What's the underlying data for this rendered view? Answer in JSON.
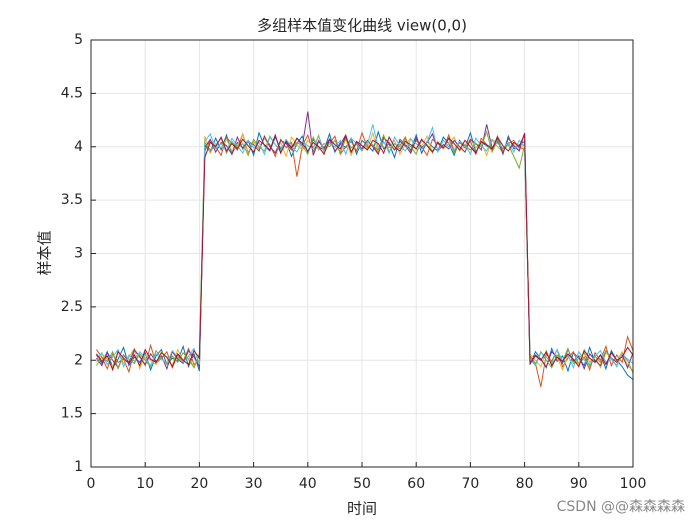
{
  "chart_data": {
    "type": "line",
    "title": "多组样本值变化曲线 view(0,0)",
    "xlabel": "时间",
    "ylabel": "样本值",
    "watermark": "CSDN @@森森森森",
    "grid": true,
    "xlim": [
      0,
      100
    ],
    "xticks": [
      0,
      10,
      20,
      30,
      40,
      50,
      60,
      70,
      80,
      90,
      100
    ],
    "ylim": [
      1,
      5
    ],
    "yticks": [
      1,
      1.5,
      2,
      2.5,
      3,
      3.5,
      4,
      4.5,
      5
    ],
    "x": [
      1,
      2,
      3,
      4,
      5,
      6,
      7,
      8,
      9,
      10,
      11,
      12,
      13,
      14,
      15,
      16,
      17,
      18,
      19,
      20,
      21,
      22,
      23,
      24,
      25,
      26,
      27,
      28,
      29,
      30,
      31,
      32,
      33,
      34,
      35,
      36,
      37,
      38,
      39,
      40,
      41,
      42,
      43,
      44,
      45,
      46,
      47,
      48,
      49,
      50,
      51,
      52,
      53,
      54,
      55,
      56,
      57,
      58,
      59,
      60,
      61,
      62,
      63,
      64,
      65,
      66,
      67,
      68,
      69,
      70,
      71,
      72,
      73,
      74,
      75,
      76,
      77,
      78,
      79,
      80,
      81,
      82,
      83,
      84,
      85,
      86,
      87,
      88,
      89,
      90,
      91,
      92,
      93,
      94,
      95,
      96,
      97,
      98,
      99,
      100
    ],
    "series": [
      {
        "color": "#0072bd",
        "values": [
          2.05,
          1.97,
          2.08,
          1.93,
          2.01,
          2.12,
          1.95,
          2.03,
          1.98,
          2.07,
          1.91,
          2.04,
          2.1,
          1.96,
          2.02,
          1.99,
          2.13,
          1.94,
          2.06,
          1.9,
          4.02,
          3.95,
          4.08,
          3.97,
          4.11,
          3.93,
          4.04,
          3.99,
          4.06,
          3.92,
          4.13,
          4.01,
          3.96,
          4.09,
          3.98,
          4.05,
          3.91,
          4.03,
          4.1,
          3.94,
          4.07,
          4.0,
          3.97,
          4.12,
          3.95,
          4.04,
          3.99,
          4.08,
          3.93,
          4.06,
          4.01,
          3.96,
          4.14,
          3.98,
          4.03,
          3.9,
          4.07,
          4.02,
          3.97,
          4.11,
          3.94,
          4.05,
          4.0,
          3.96,
          4.09,
          4.03,
          3.92,
          4.06,
          3.99,
          4.13,
          3.95,
          4.04,
          4.01,
          3.97,
          4.08,
          3.93,
          4.1,
          3.98,
          4.02,
          4.05,
          1.96,
          2.08,
          2.01,
          1.93,
          2.11,
          1.99,
          2.04,
          1.9,
          2.07,
          2.02,
          1.95,
          2.12,
          1.98,
          2.05,
          1.92,
          2.09,
          2.0,
          1.94,
          1.86,
          1.82
        ]
      },
      {
        "color": "#d95319",
        "values": [
          2.1,
          2.03,
          1.92,
          2.06,
          1.98,
          2.01,
          1.89,
          2.09,
          2.04,
          1.95,
          2.14,
          1.97,
          2.02,
          2.08,
          1.93,
          2.05,
          1.99,
          2.11,
          1.96,
          2.0,
          3.96,
          4.06,
          4.0,
          3.92,
          4.09,
          4.03,
          3.97,
          4.12,
          3.94,
          4.05,
          3.98,
          4.08,
          4.02,
          3.91,
          4.07,
          3.99,
          4.04,
          3.72,
          4.01,
          4.11,
          3.95,
          4.06,
          3.97,
          4.03,
          4.1,
          3.93,
          4.0,
          4.05,
          3.96,
          4.13,
          3.99,
          4.02,
          3.94,
          4.08,
          4.04,
          3.97,
          4.01,
          4.09,
          3.95,
          4.06,
          4.0,
          3.92,
          4.07,
          4.03,
          3.98,
          4.11,
          3.96,
          4.04,
          3.99,
          4.05,
          3.93,
          4.08,
          4.02,
          3.97,
          4.1,
          3.95,
          4.03,
          4.06,
          3.99,
          3.98,
          2.04,
          1.97,
          1.75,
          2.06,
          1.99,
          2.1,
          1.94,
          2.02,
          2.08,
          1.96,
          2.03,
          1.91,
          2.07,
          2.0,
          2.13,
          1.95,
          2.05,
          1.98,
          2.22,
          2.09
        ]
      },
      {
        "color": "#edb120",
        "values": [
          1.98,
          2.06,
          2.01,
          1.94,
          2.09,
          1.97,
          2.03,
          2.11,
          1.92,
          2.05,
          2.0,
          1.96,
          2.08,
          2.02,
          1.95,
          2.1,
          1.99,
          2.04,
          1.93,
          2.07,
          4.1,
          3.94,
          4.03,
          3.99,
          4.07,
          3.96,
          4.01,
          4.12,
          3.93,
          4.05,
          3.98,
          4.08,
          4.0,
          3.95,
          4.04,
          3.91,
          4.09,
          4.02,
          3.97,
          4.06,
          3.99,
          4.11,
          3.94,
          4.03,
          4.0,
          3.96,
          4.07,
          3.92,
          4.05,
          4.01,
          3.98,
          4.13,
          3.95,
          4.04,
          3.99,
          4.06,
          3.93,
          4.02,
          4.08,
          3.97,
          4.0,
          4.1,
          3.94,
          4.05,
          3.98,
          4.03,
          4.09,
          3.96,
          4.01,
          4.07,
          3.99,
          4.04,
          3.92,
          4.06,
          4.0,
          3.95,
          4.08,
          4.02,
          3.97,
          4.03,
          2.06,
          2.0,
          1.94,
          2.09,
          1.97,
          2.03,
          1.91,
          2.05,
          2.01,
          1.96,
          2.1,
          1.98,
          2.04,
          1.93,
          2.07,
          2.02,
          1.99,
          2.08,
          1.95,
          1.9
        ]
      },
      {
        "color": "#7e2f8e",
        "values": [
          2.02,
          1.95,
          2.07,
          2.0,
          1.93,
          2.05,
          1.98,
          2.1,
          2.03,
          1.96,
          2.06,
          1.99,
          2.04,
          1.92,
          2.08,
          2.01,
          1.97,
          2.09,
          2.03,
          1.94,
          3.99,
          4.07,
          3.95,
          4.04,
          4.01,
          3.93,
          4.09,
          3.98,
          4.05,
          4.02,
          3.96,
          4.1,
          4.0,
          3.94,
          4.06,
          4.03,
          3.97,
          4.08,
          4.01,
          4.33,
          3.92,
          4.05,
          3.99,
          4.07,
          3.96,
          4.02,
          4.11,
          3.95,
          4.04,
          3.98,
          4.06,
          4.0,
          3.93,
          4.09,
          4.03,
          3.97,
          4.05,
          4.01,
          3.94,
          4.08,
          3.99,
          4.04,
          4.12,
          3.96,
          4.02,
          3.98,
          4.06,
          4.0,
          3.95,
          4.07,
          4.03,
          3.97,
          4.21,
          3.99,
          4.05,
          3.94,
          4.08,
          4.01,
          3.96,
          4.13,
          1.98,
          2.05,
          2.01,
          1.94,
          2.08,
          2.03,
          1.97,
          2.1,
          1.99,
          2.04,
          1.92,
          2.06,
          2.0,
          1.95,
          2.09,
          2.02,
          1.98,
          2.05,
          1.93,
          2.07
        ]
      },
      {
        "color": "#77ac30",
        "values": [
          1.95,
          2.03,
          1.99,
          2.08,
          1.92,
          2.05,
          2.01,
          1.97,
          2.06,
          2.0,
          1.94,
          2.09,
          2.02,
          1.96,
          2.04,
          1.98,
          2.07,
          2.01,
          1.93,
          2.05,
          4.04,
          3.97,
          4.01,
          4.08,
          3.94,
          4.05,
          3.99,
          4.03,
          3.92,
          4.07,
          4.0,
          3.96,
          4.1,
          4.02,
          3.95,
          4.06,
          3.98,
          4.04,
          4.01,
          3.93,
          4.09,
          3.97,
          4.03,
          4.0,
          4.06,
          3.94,
          4.08,
          3.99,
          4.02,
          3.96,
          4.05,
          4.01,
          3.97,
          4.11,
          3.95,
          4.03,
          3.98,
          4.07,
          4.0,
          3.93,
          4.06,
          4.02,
          3.96,
          4.04,
          3.99,
          4.08,
          3.94,
          4.05,
          4.01,
          3.97,
          4.03,
          4.0,
          4.14,
          3.95,
          4.06,
          3.98,
          4.02,
          3.91,
          3.8,
          4.01,
          2.03,
          1.96,
          2.08,
          2.0,
          1.93,
          2.05,
          1.99,
          2.11,
          1.97,
          2.02,
          2.07,
          1.94,
          2.04,
          1.98,
          2.09,
          2.01,
          1.95,
          2.06,
          2.0,
          1.88
        ]
      },
      {
        "color": "#4dbeee",
        "values": [
          2.0,
          2.07,
          1.96,
          2.03,
          2.1,
          1.94,
          2.05,
          1.99,
          2.08,
          2.02,
          1.95,
          2.06,
          2.01,
          1.97,
          2.09,
          2.03,
          1.98,
          2.04,
          2.11,
          1.96,
          4.05,
          4.12,
          3.98,
          4.03,
          3.96,
          4.08,
          4.01,
          3.94,
          4.06,
          3.99,
          4.04,
          3.93,
          4.09,
          4.02,
          3.97,
          4.07,
          4.0,
          3.95,
          4.05,
          4.01,
          3.98,
          4.1,
          3.96,
          4.04,
          4.0,
          4.06,
          3.93,
          4.08,
          4.03,
          3.97,
          4.02,
          4.21,
          3.99,
          4.05,
          3.94,
          4.09,
          4.01,
          3.96,
          4.07,
          4.03,
          3.98,
          4.04,
          4.18,
          3.95,
          4.06,
          4.0,
          3.97,
          4.05,
          4.02,
          3.93,
          4.08,
          4.01,
          3.96,
          4.07,
          4.03,
          3.99,
          4.04,
          3.95,
          4.06,
          4.0,
          2.01,
          1.95,
          2.07,
          2.03,
          1.97,
          2.1,
          1.99,
          2.05,
          1.93,
          2.08,
          2.0,
          1.96,
          2.04,
          2.09,
          1.98,
          2.02,
          1.94,
          2.06,
          2.01,
          1.97
        ]
      },
      {
        "color": "#a2142f",
        "values": [
          2.06,
          1.99,
          2.04,
          1.91,
          2.08,
          2.02,
          1.97,
          2.05,
          1.95,
          2.1,
          2.01,
          1.98,
          2.07,
          2.03,
          1.94,
          2.06,
          2.0,
          1.96,
          2.09,
          2.02,
          3.9,
          4.04,
          4.0,
          4.09,
          3.96,
          4.03,
          3.98,
          4.07,
          4.01,
          3.95,
          4.06,
          4.02,
          3.97,
          4.11,
          3.94,
          4.05,
          3.99,
          4.08,
          4.03,
          3.96,
          4.04,
          4.0,
          3.93,
          4.07,
          4.02,
          3.98,
          4.1,
          3.95,
          4.05,
          4.01,
          3.97,
          4.06,
          4.03,
          3.94,
          4.09,
          4.0,
          3.96,
          4.05,
          4.02,
          3.98,
          4.07,
          4.01,
          3.95,
          4.04,
          3.99,
          4.08,
          4.03,
          3.97,
          4.06,
          4.0,
          3.94,
          4.05,
          4.02,
          3.98,
          4.09,
          4.01,
          3.96,
          4.04,
          4.0,
          4.12,
          1.97,
          2.04,
          2.0,
          2.08,
          1.95,
          2.03,
          1.99,
          2.06,
          2.01,
          1.94,
          2.09,
          2.02,
          1.98,
          2.05,
          1.96,
          2.07,
          2.0,
          2.03,
          2.12,
          2.05
        ]
      }
    ]
  }
}
